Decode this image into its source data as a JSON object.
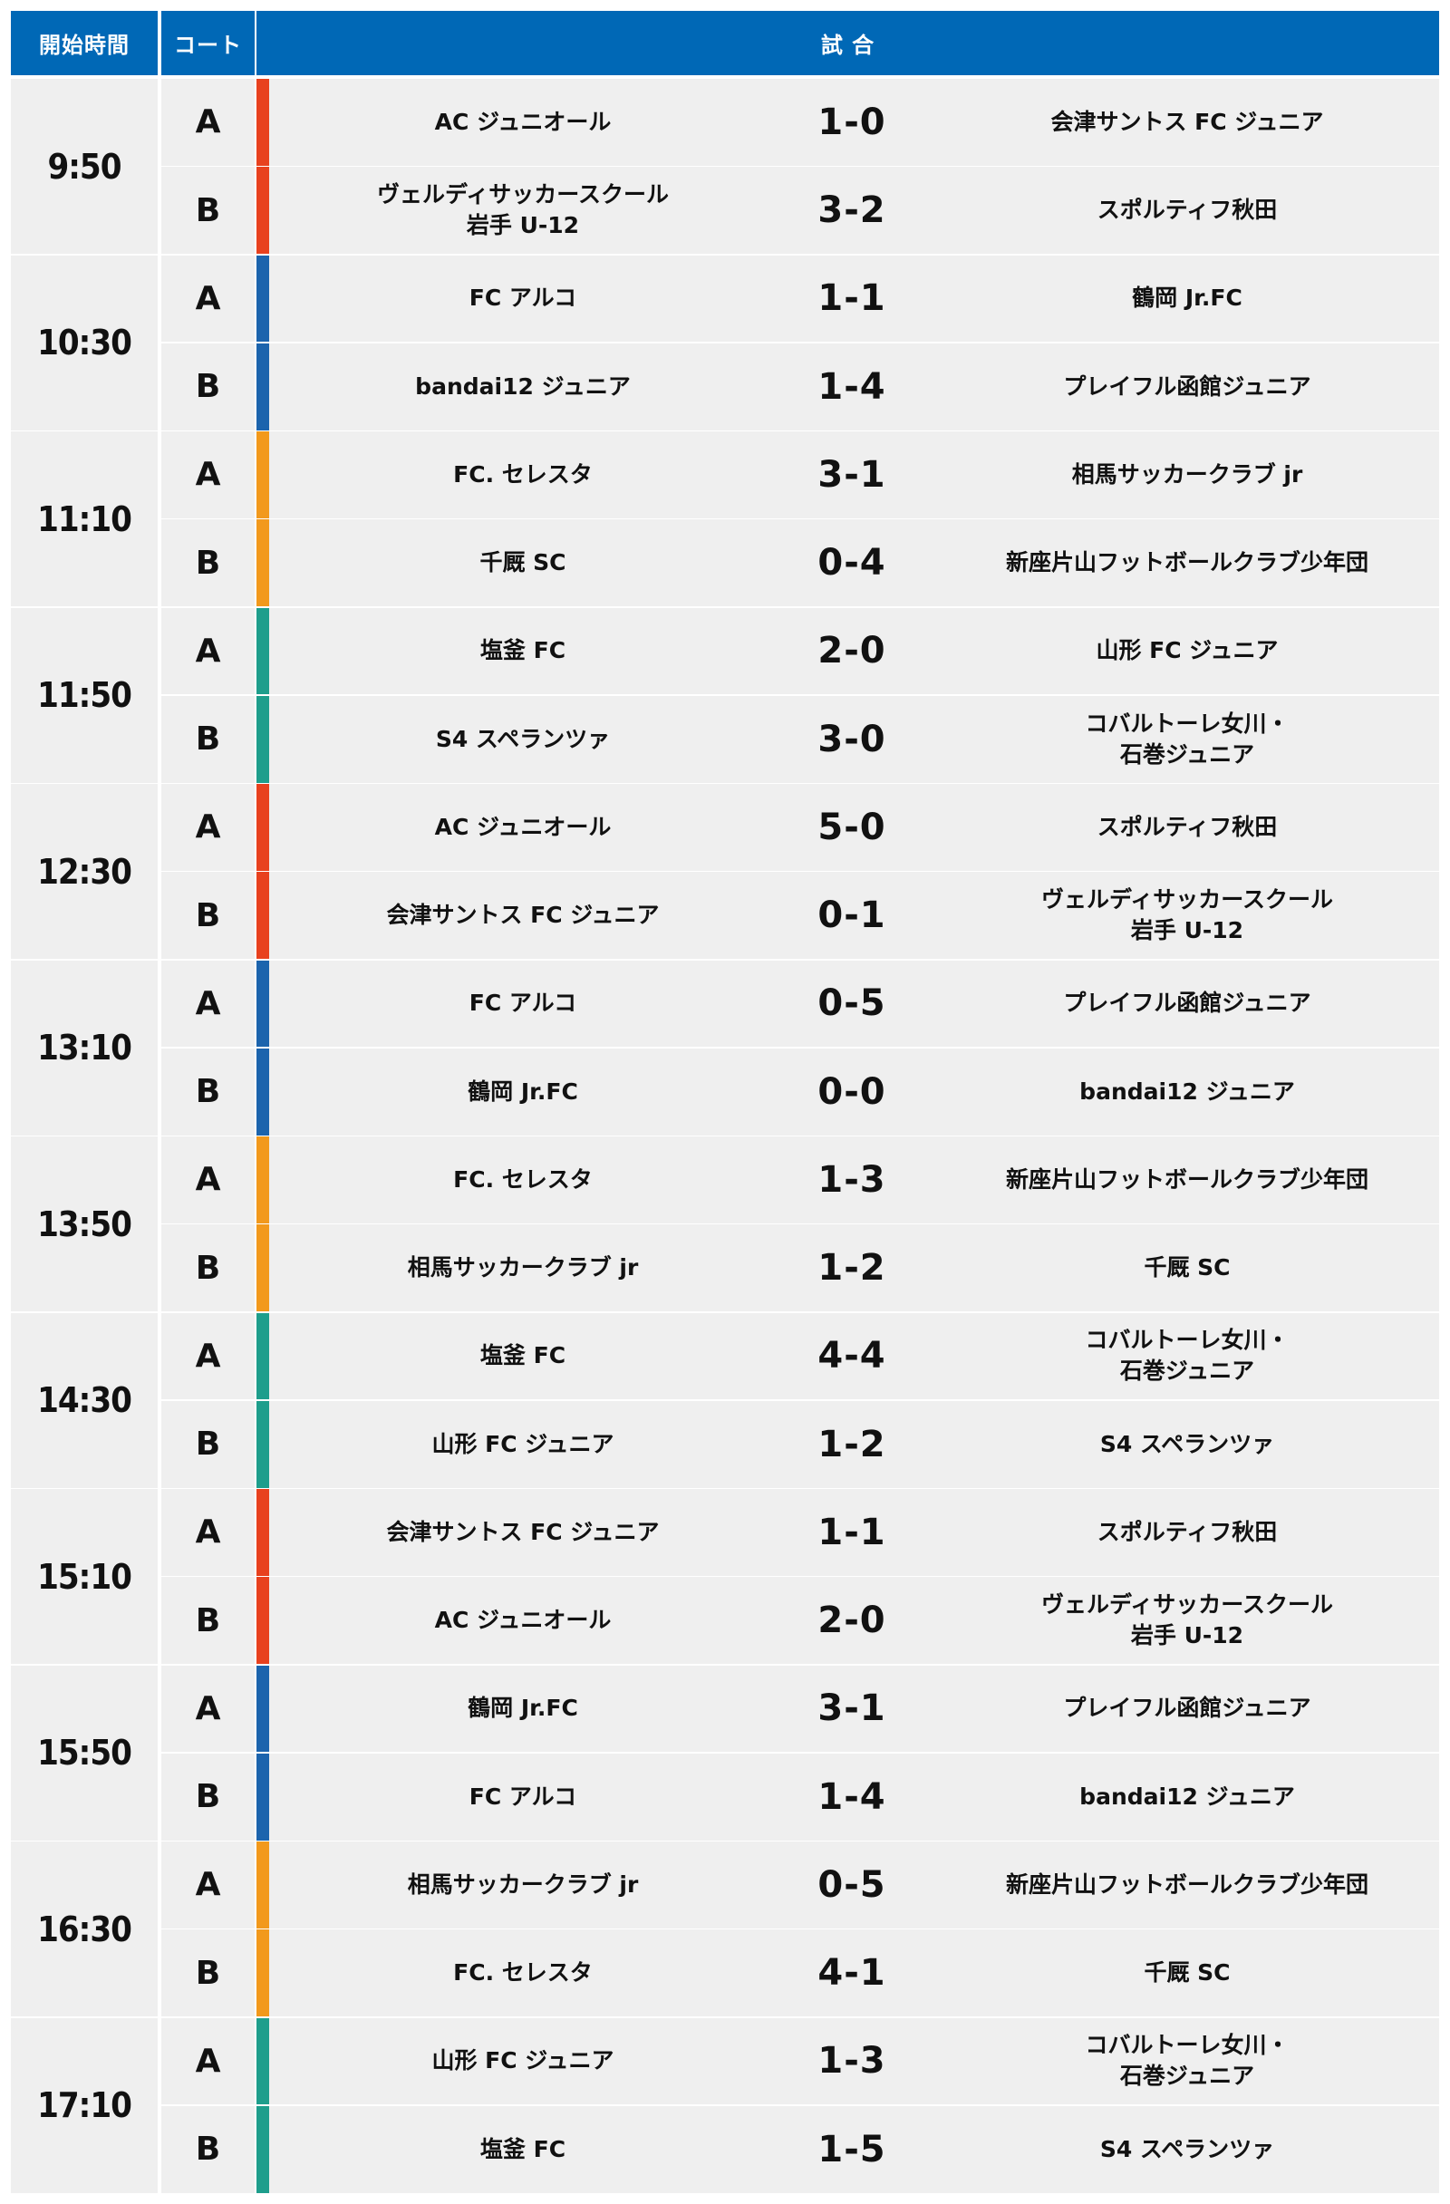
{
  "header": {
    "start_time": "開始時間",
    "court": "コート",
    "match": "試 合"
  },
  "court_colors": [
    "#e8411e",
    "#1c64ad",
    "#f2991c",
    "#1e9e8c"
  ],
  "slots": [
    {
      "time": "9:50",
      "color_index": 0,
      "matches": [
        {
          "court": "A",
          "home": "AC ジュニオール",
          "score": "1-0",
          "away": "会津サントス FC ジュニア"
        },
        {
          "court": "B",
          "home": "ヴェルディサッカースクール\n岩手 U-12",
          "score": "3-2",
          "away": "スポルティフ秋田"
        }
      ]
    },
    {
      "time": "10:30",
      "color_index": 1,
      "matches": [
        {
          "court": "A",
          "home": "FC アルコ",
          "score": "1-1",
          "away": "鶴岡 Jr.FC"
        },
        {
          "court": "B",
          "home": "bandai12 ジュニア",
          "score": "1-4",
          "away": "プレイフル函館ジュニア"
        }
      ]
    },
    {
      "time": "11:10",
      "color_index": 2,
      "matches": [
        {
          "court": "A",
          "home": "FC. セレスタ",
          "score": "3-1",
          "away": "相馬サッカークラブ jr"
        },
        {
          "court": "B",
          "home": "千厩 SC",
          "score": "0-4",
          "away": "新座片山フットボールクラブ少年団"
        }
      ]
    },
    {
      "time": "11:50",
      "color_index": 3,
      "matches": [
        {
          "court": "A",
          "home": "塩釜 FC",
          "score": "2-0",
          "away": "山形 FC ジュニア"
        },
        {
          "court": "B",
          "home": "S4 スペランツァ",
          "score": "3-0",
          "away": "コバルトーレ女川・\n石巻ジュニア"
        }
      ]
    },
    {
      "time": "12:30",
      "color_index": 0,
      "matches": [
        {
          "court": "A",
          "home": "AC ジュニオール",
          "score": "5-0",
          "away": "スポルティフ秋田"
        },
        {
          "court": "B",
          "home": "会津サントス FC ジュニア",
          "score": "0-1",
          "away": "ヴェルディサッカースクール\n岩手 U-12"
        }
      ]
    },
    {
      "time": "13:10",
      "color_index": 1,
      "matches": [
        {
          "court": "A",
          "home": "FC アルコ",
          "score": "0-5",
          "away": "プレイフル函館ジュニア"
        },
        {
          "court": "B",
          "home": "鶴岡 Jr.FC",
          "score": "0-0",
          "away": "bandai12 ジュニア"
        }
      ]
    },
    {
      "time": "13:50",
      "color_index": 2,
      "matches": [
        {
          "court": "A",
          "home": "FC. セレスタ",
          "score": "1-3",
          "away": "新座片山フットボールクラブ少年団"
        },
        {
          "court": "B",
          "home": "相馬サッカークラブ jr",
          "score": "1-2",
          "away": "千厩 SC"
        }
      ]
    },
    {
      "time": "14:30",
      "color_index": 3,
      "matches": [
        {
          "court": "A",
          "home": "塩釜 FC",
          "score": "4-4",
          "away": "コバルトーレ女川・\n石巻ジュニア"
        },
        {
          "court": "B",
          "home": "山形 FC ジュニア",
          "score": "1-2",
          "away": "S4 スペランツァ"
        }
      ]
    },
    {
      "time": "15:10",
      "color_index": 0,
      "matches": [
        {
          "court": "A",
          "home": "会津サントス FC ジュニア",
          "score": "1-1",
          "away": "スポルティフ秋田"
        },
        {
          "court": "B",
          "home": "AC ジュニオール",
          "score": "2-0",
          "away": "ヴェルディサッカースクール\n岩手 U-12"
        }
      ]
    },
    {
      "time": "15:50",
      "color_index": 1,
      "matches": [
        {
          "court": "A",
          "home": "鶴岡 Jr.FC",
          "score": "3-1",
          "away": "プレイフル函館ジュニア"
        },
        {
          "court": "B",
          "home": "FC アルコ",
          "score": "1-4",
          "away": "bandai12 ジュニア"
        }
      ]
    },
    {
      "time": "16:30",
      "color_index": 2,
      "matches": [
        {
          "court": "A",
          "home": "相馬サッカークラブ jr",
          "score": "0-5",
          "away": "新座片山フットボールクラブ少年団"
        },
        {
          "court": "B",
          "home": "FC. セレスタ",
          "score": "4-1",
          "away": "千厩 SC"
        }
      ]
    },
    {
      "time": "17:10",
      "color_index": 3,
      "matches": [
        {
          "court": "A",
          "home": "山形 FC ジュニア",
          "score": "1-3",
          "away": "コバルトーレ女川・\n石巻ジュニア"
        },
        {
          "court": "B",
          "home": "塩釜 FC",
          "score": "1-5",
          "away": "S4 スペランツァ"
        }
      ]
    }
  ]
}
